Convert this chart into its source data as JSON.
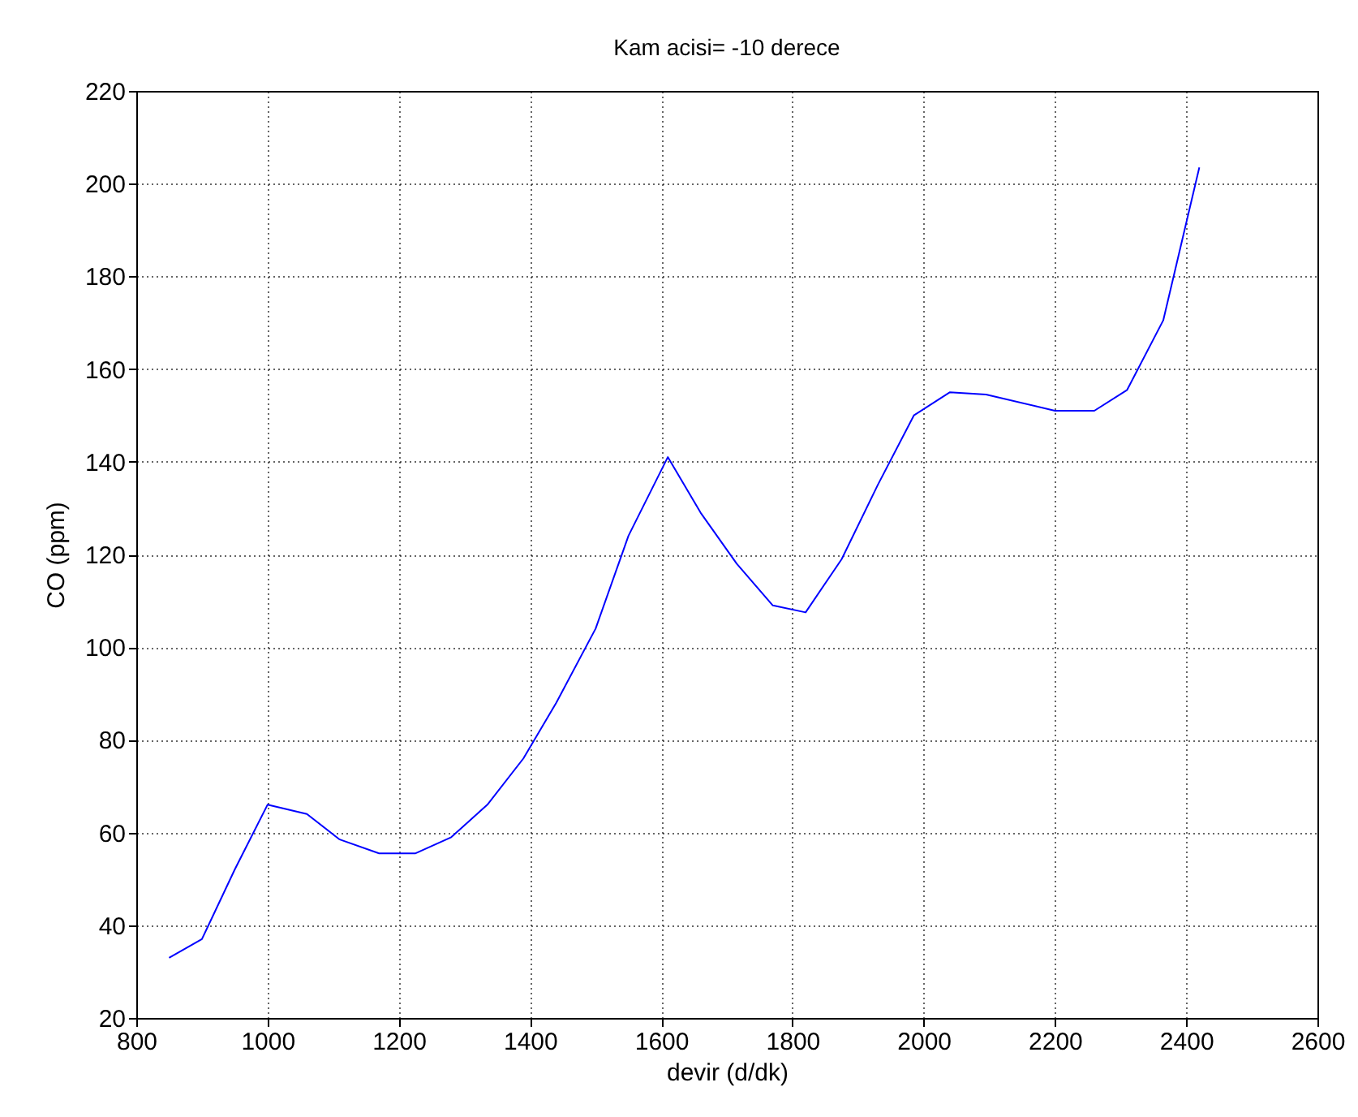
{
  "chart_data": {
    "type": "line",
    "title": "Kam acisi= -10 derece",
    "xlabel": "devir (d/dk)",
    "ylabel": "CO (ppm)",
    "x": [
      850,
      900,
      950,
      1000,
      1060,
      1110,
      1170,
      1225,
      1280,
      1335,
      1390,
      1440,
      1500,
      1550,
      1610,
      1660,
      1715,
      1770,
      1820,
      1875,
      1930,
      1985,
      2040,
      2095,
      2200,
      2260,
      2310,
      2365,
      2420
    ],
    "series": [
      {
        "color": "#0000ff",
        "values": [
          33,
          37,
          52,
          66,
          64,
          58.5,
          55.5,
          55.5,
          59,
          66,
          76,
          88,
          104,
          124,
          141,
          129,
          118,
          109,
          107.5,
          119,
          135,
          150,
          155,
          154.5,
          151,
          151,
          155.5,
          170.5,
          203.5
        ]
      }
    ],
    "xlim": [
      800,
      2600
    ],
    "xticks": [
      800,
      1000,
      1200,
      1400,
      1600,
      1800,
      2000,
      2200,
      2400,
      2600
    ],
    "ylim": [
      20,
      220
    ],
    "yticks": [
      20,
      40,
      60,
      80,
      100,
      120,
      140,
      160,
      180,
      200,
      220
    ],
    "grid": true,
    "marker": "none",
    "line_style": "solid"
  }
}
